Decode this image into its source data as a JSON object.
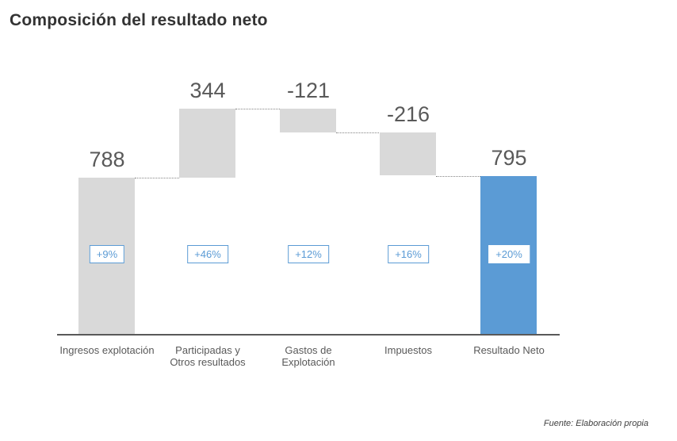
{
  "title": "Composición del resultado neto",
  "footer": {
    "source": "Fuente: Elaboración propia"
  },
  "chart_data": {
    "type": "waterfall",
    "title": "Composición del resultado neto",
    "categories": [
      "Ingresos explotación",
      "Participadas y\nOtros resultados",
      "Gastos de\nExplotación",
      "Impuestos",
      "Resultado Neto"
    ],
    "values": [
      788,
      344,
      -121,
      -216,
      795
    ],
    "bar_roles": [
      "increase",
      "increase",
      "decrease",
      "decrease",
      "total"
    ],
    "value_labels": [
      "788",
      "344",
      "-121",
      "-216",
      "795"
    ],
    "pct_badges": [
      {
        "label": "+9%",
        "bordered": true
      },
      {
        "label": "+46%",
        "bordered": true
      },
      {
        "label": "+12%",
        "bordered": true
      },
      {
        "label": "+16%",
        "bordered": true
      },
      {
        "label": "+20%",
        "bordered": false
      }
    ],
    "cumulative_levels": [
      788,
      1132,
      1011,
      795,
      795
    ],
    "max_cumulative": 1132,
    "baseline_value": 0,
    "xlabel": "",
    "ylabel": "",
    "legend": "none",
    "gridlines": false,
    "source_note": "Fuente: Elaboración propia",
    "colors": {
      "delta_bar": "#d9d9d9",
      "total_bar": "#5b9bd5",
      "value_label": "#595959",
      "category_label": "#595959",
      "axis_line": "#595959",
      "badge_text": "#5b9bd5",
      "badge_border": "#5b9bd5",
      "badge_bg": "#ffffff",
      "connector": "#848484"
    }
  }
}
